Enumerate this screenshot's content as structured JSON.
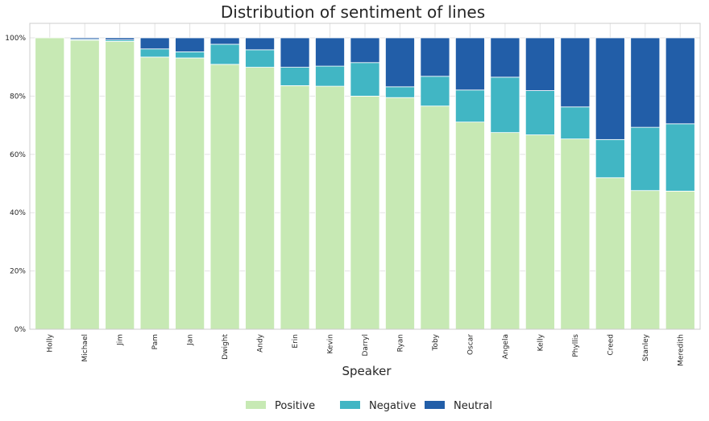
{
  "chart_data": {
    "type": "bar",
    "stacked": true,
    "title": "Distribution of sentiment of lines",
    "xlabel": "Speaker",
    "ylabel": "",
    "ylim": [
      0,
      100
    ],
    "ytick_values": [
      0,
      20,
      40,
      60,
      80,
      100
    ],
    "ytick_labels": [
      "0%",
      "20%",
      "40%",
      "60%",
      "80%",
      "100%"
    ],
    "grid": true,
    "legend_position": "bottom-center",
    "categories": [
      "Holly",
      "Michael",
      "Jim",
      "Pam",
      "Jan",
      "Dwight",
      "Andy",
      "Erin",
      "Kevin",
      "Darryl",
      "Ryan",
      "Toby",
      "Oscar",
      "Angela",
      "Kelly",
      "Phyllis",
      "Creed",
      "Stanley",
      "Meredith"
    ],
    "series": [
      {
        "name": "Positive",
        "color": "#c7e9b4",
        "values": [
          100,
          99.2,
          98.8,
          93.4,
          93.1,
          90.9,
          89.9,
          83.6,
          83.4,
          80.0,
          79.5,
          76.6,
          71.1,
          67.5,
          66.7,
          65.3,
          52.0,
          47.6,
          47.4
        ]
      },
      {
        "name": "Negative",
        "color": "#41b6c4",
        "values": [
          0,
          0.3,
          0.5,
          2.8,
          2.1,
          6.9,
          6.0,
          6.3,
          6.9,
          11.5,
          3.7,
          10.2,
          11.0,
          19.0,
          15.2,
          11.0,
          13.1,
          21.7,
          23.1
        ]
      },
      {
        "name": "Neutral",
        "color": "#225ea8",
        "values": [
          0,
          0.5,
          0.7,
          3.8,
          4.8,
          2.2,
          4.1,
          10.1,
          9.7,
          8.5,
          16.8,
          13.2,
          17.9,
          13.5,
          18.1,
          23.7,
          34.9,
          30.7,
          29.5
        ]
      }
    ]
  }
}
